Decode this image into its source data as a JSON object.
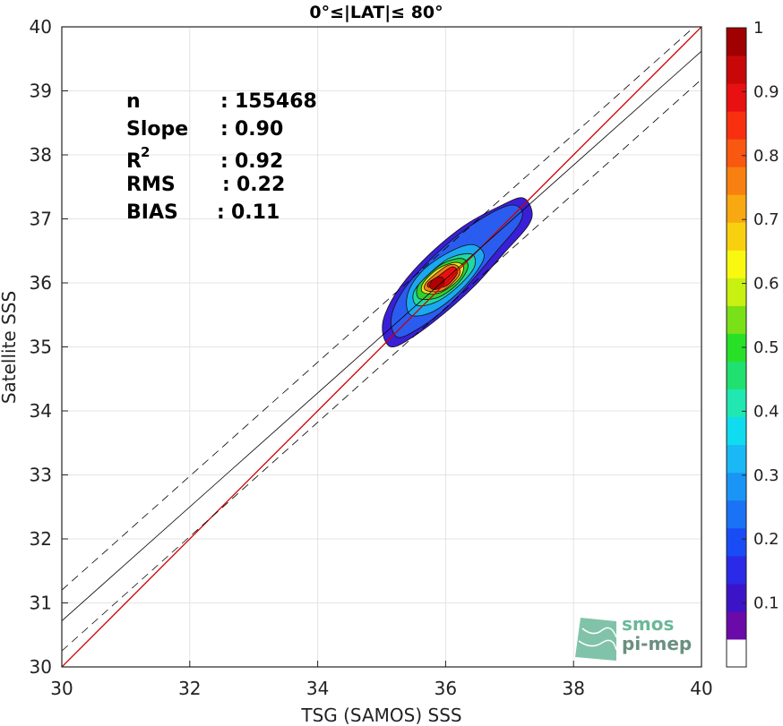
{
  "chart_data": {
    "type": "density_scatter",
    "title": "0°≤|LAT|≤ 80°",
    "xlabel": "TSG (SAMOS) SSS",
    "ylabel": "Satellite SSS",
    "xlim": [
      30,
      40
    ],
    "ylim": [
      30,
      40
    ],
    "xticks": [
      "30",
      "32",
      "34",
      "36",
      "38",
      "40"
    ],
    "yticks": [
      "30",
      "31",
      "32",
      "33",
      "34",
      "35",
      "36",
      "37",
      "38",
      "39",
      "40"
    ],
    "grid": true,
    "stats": [
      {
        "key": "n",
        "sep": " : ",
        "value": "155468"
      },
      {
        "key": "Slope",
        "sep": " : ",
        "value": "0.90"
      },
      {
        "key": "R",
        "sup": "2",
        "sep": " : ",
        "value": "0.92"
      },
      {
        "key": "RMS",
        "sep": " : ",
        "value": "0.22"
      },
      {
        "key": "BIAS",
        "sep": " : ",
        "value": "0.11"
      }
    ],
    "lines": [
      {
        "name": "one-to-one",
        "color": "#cc0000",
        "style": "solid",
        "points": [
          [
            30,
            30
          ],
          [
            40,
            40
          ]
        ]
      },
      {
        "name": "regression",
        "color": "#000000",
        "style": "solid",
        "points": [
          [
            30,
            30.72
          ],
          [
            40,
            39.62
          ]
        ]
      },
      {
        "name": "regression-upper",
        "color": "#000000",
        "style": "dashed",
        "points": [
          [
            30,
            31.2
          ],
          [
            40,
            40.1
          ]
        ]
      },
      {
        "name": "regression-lower",
        "color": "#000000",
        "style": "dashed",
        "points": [
          [
            30,
            30.25
          ],
          [
            40,
            39.18
          ]
        ]
      }
    ],
    "density": {
      "center": [
        35.95,
        36.05
      ],
      "levels": [
        {
          "level": 0.05,
          "color": "#3a1fd8",
          "points": [
            [
              35.15,
              35.0
            ],
            [
              35.45,
              35.13
            ],
            [
              35.95,
              35.5
            ],
            [
              36.45,
              35.95
            ],
            [
              36.9,
              36.45
            ],
            [
              37.28,
              36.88
            ],
            [
              37.35,
              37.12
            ],
            [
              37.2,
              37.33
            ],
            [
              36.85,
              37.2
            ],
            [
              36.3,
              36.9
            ],
            [
              35.75,
              36.45
            ],
            [
              35.3,
              35.95
            ],
            [
              35.05,
              35.5
            ],
            [
              35.02,
              35.2
            ]
          ]
        },
        {
          "level": 0.15,
          "color": "#2a5cf0",
          "points": [
            [
              35.25,
              35.15
            ],
            [
              35.6,
              35.3
            ],
            [
              36.0,
              35.6
            ],
            [
              36.4,
              36.02
            ],
            [
              36.8,
              36.5
            ],
            [
              37.15,
              36.92
            ],
            [
              37.18,
              37.15
            ],
            [
              36.95,
              37.2
            ],
            [
              36.4,
              36.9
            ],
            [
              35.8,
              36.4
            ],
            [
              35.35,
              35.9
            ],
            [
              35.15,
              35.45
            ]
          ]
        },
        {
          "level": 0.35,
          "color": "#1aa8f0",
          "points": [
            [
              35.45,
              35.5
            ],
            [
              35.8,
              35.55
            ],
            [
              36.2,
              35.85
            ],
            [
              36.5,
              36.2
            ],
            [
              36.6,
              36.45
            ],
            [
              36.4,
              36.6
            ],
            [
              36.0,
              36.45
            ],
            [
              35.6,
              36.15
            ],
            [
              35.4,
              35.8
            ]
          ]
        },
        {
          "level": 0.45,
          "color": "#20d8a0",
          "points": [
            [
              35.55,
              35.65
            ],
            [
              35.85,
              35.7
            ],
            [
              36.2,
              35.95
            ],
            [
              36.45,
              36.25
            ],
            [
              36.4,
              36.45
            ],
            [
              36.05,
              36.38
            ],
            [
              35.7,
              36.1
            ],
            [
              35.5,
              35.85
            ]
          ]
        },
        {
          "level": 0.55,
          "color": "#30d030",
          "points": [
            [
              35.6,
              35.75
            ],
            [
              35.9,
              35.78
            ],
            [
              36.2,
              36.0
            ],
            [
              36.35,
              36.25
            ],
            [
              36.25,
              36.38
            ],
            [
              35.95,
              36.3
            ],
            [
              35.65,
              36.05
            ],
            [
              35.55,
              35.9
            ]
          ]
        },
        {
          "level": 0.65,
          "color": "#f0e020",
          "points": [
            [
              35.65,
              35.85
            ],
            [
              35.92,
              35.85
            ],
            [
              36.2,
              36.05
            ],
            [
              36.28,
              36.25
            ],
            [
              36.15,
              36.32
            ],
            [
              35.88,
              36.22
            ],
            [
              35.65,
              36.0
            ]
          ]
        },
        {
          "level": 0.75,
          "color": "#f08010",
          "points": [
            [
              35.7,
              35.88
            ],
            [
              35.95,
              35.88
            ],
            [
              36.2,
              36.1
            ],
            [
              36.2,
              36.25
            ],
            [
              36.05,
              36.28
            ],
            [
              35.82,
              36.12
            ],
            [
              35.68,
              35.98
            ]
          ]
        },
        {
          "level": 0.9,
          "color": "#e81010",
          "points": [
            [
              35.75,
              35.93
            ],
            [
              36.0,
              35.95
            ],
            [
              36.18,
              36.15
            ],
            [
              36.1,
              36.25
            ],
            [
              35.88,
              36.1
            ],
            [
              35.73,
              36.0
            ]
          ]
        }
      ]
    },
    "colorbar": {
      "min": 0,
      "max": 1,
      "labels": [
        "1",
        "0.9",
        "0.8",
        "0.7",
        "0.6",
        "0.5",
        "0.4",
        "0.3",
        "0.2",
        "0.1"
      ],
      "label_values": [
        1,
        0.9,
        0.8,
        0.7,
        0.6,
        0.5,
        0.4,
        0.3,
        0.2,
        0.1
      ],
      "colors": [
        "#ffffff",
        "#6a0aa8",
        "#3c14c8",
        "#2a2ae8",
        "#1a4cf5",
        "#1a72f5",
        "#1a95f5",
        "#1ab8f5",
        "#10dcf0",
        "#20e8b0",
        "#20e070",
        "#28e028",
        "#7ae018",
        "#c8f010",
        "#f8f810",
        "#f8d010",
        "#f8a810",
        "#f88010",
        "#f85810",
        "#f83010",
        "#e81010",
        "#c80808",
        "#a00000"
      ]
    },
    "logo": {
      "line1": "smos",
      "line2": "pi-mep",
      "color": "#6bb89a"
    }
  }
}
